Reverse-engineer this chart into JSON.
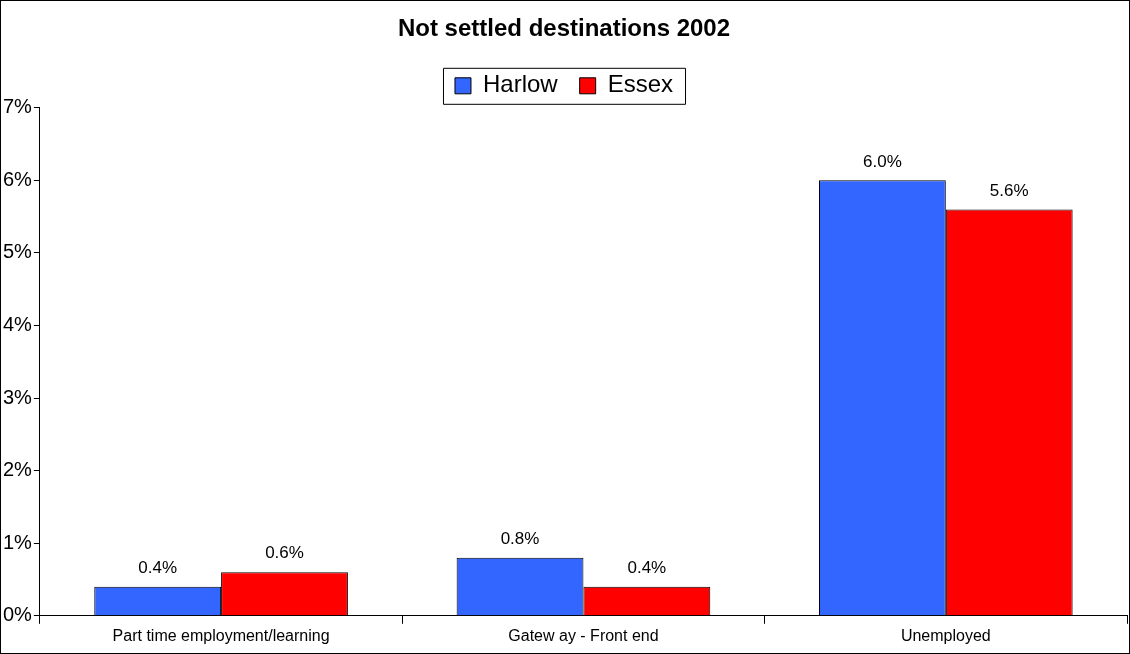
{
  "chart_data": {
    "type": "bar",
    "title": "Not settled destinations 2002",
    "categories": [
      "Part time employment/learning",
      "Gatew ay - Front end",
      "Unemployed"
    ],
    "series": [
      {
        "name": "Harlow",
        "color": "#3366ff",
        "values": [
          0.4,
          0.8,
          6.0
        ],
        "value_labels": [
          "0.4%",
          "0.8%",
          "6.0%"
        ]
      },
      {
        "name": "Essex",
        "color": "#ff0000",
        "values": [
          0.6,
          0.4,
          5.6
        ],
        "value_labels": [
          "0.6%",
          "0.4%",
          "5.6%"
        ]
      }
    ],
    "ylim": [
      0,
      7
    ],
    "yticks": [
      {
        "value": 0,
        "label": "0%"
      },
      {
        "value": 1,
        "label": "1%"
      },
      {
        "value": 2,
        "label": "2%"
      },
      {
        "value": 3,
        "label": "3%"
      },
      {
        "value": 4,
        "label": "4%"
      },
      {
        "value": 5,
        "label": "5%"
      },
      {
        "value": 6,
        "label": "6%"
      },
      {
        "value": 7,
        "label": "7%"
      }
    ],
    "grid": false,
    "legend": "top"
  }
}
